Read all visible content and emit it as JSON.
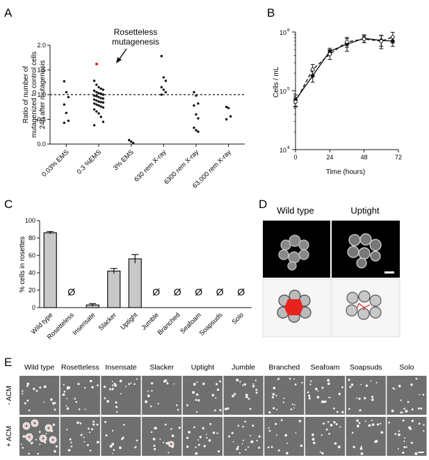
{
  "panels": {
    "A": "A",
    "B": "B",
    "C": "C",
    "D": "D",
    "E": "E"
  },
  "colors": {
    "red": "#e8231e",
    "bar": "#c8c8c8",
    "axis": "#111111"
  },
  "panelA": {
    "annotation": [
      "Rosetteless",
      "mutagenesis"
    ],
    "ylabel": [
      "Ratio of number of",
      "mutagenized to control cells",
      "24h after mutagenesis"
    ],
    "yticks": [
      "0.0",
      "0.5",
      "1.0",
      "1.5",
      "2.0"
    ]
  },
  "panelB": {
    "ylabel": "Cells / mL",
    "xlabel": "Time (hours)",
    "xticks": [
      "0",
      "24",
      "48",
      "72"
    ],
    "yticks": [
      "10",
      "10",
      "10"
    ],
    "yexp": [
      "4",
      "5",
      "6"
    ]
  },
  "panelC": {
    "ylabel": "% cells in rosettes",
    "yticks": [
      "0",
      "20",
      "40",
      "60",
      "80",
      "100"
    ],
    "null_symbol": "Ø"
  },
  "panelD": {
    "titles": [
      "Wild type",
      "Uptight"
    ]
  },
  "panelE": {
    "strains": [
      "Wild type",
      "Rosetteless",
      "Insensate",
      "Slacker",
      "Uptight",
      "Jumble",
      "Branched",
      "Seafoam",
      "Soapsuds",
      "Solo"
    ],
    "rows": [
      "- ACM",
      "+ ACM"
    ]
  },
  "chart_data": [
    {
      "type": "scatter",
      "panel": "A",
      "categories": [
        "0.03% EMS",
        "0.3 %EMS",
        "3% EMS",
        "630 rem X-ray",
        "6300 rem X-ray",
        "63,000 rem X-ray"
      ],
      "ylim": [
        0,
        2.0
      ],
      "reference_line": 1.0,
      "highlight": {
        "category": "0.3 %EMS",
        "y": 1.62,
        "color": "#e8231e"
      },
      "points": [
        [
          1.27,
          1.05,
          0.95,
          0.8,
          0.63,
          0.47,
          0.43
        ],
        [
          1.28,
          1.2,
          1.15,
          1.12,
          1.1,
          1.08,
          1.05,
          1.03,
          1.02,
          1.0,
          0.98,
          0.97,
          0.95,
          0.93,
          0.92,
          0.9,
          0.88,
          0.86,
          0.85,
          0.84,
          0.82,
          0.8,
          0.78,
          0.76,
          0.74,
          0.7,
          0.66,
          0.62,
          0.55,
          0.45,
          0.38
        ],
        [
          0.08,
          0.05,
          0.02
        ],
        [
          1.78,
          1.35,
          1.28,
          1.15,
          1.1,
          1.05,
          1.0
        ],
        [
          1.05,
          0.98,
          0.82,
          0.78,
          0.6,
          0.52,
          0.33,
          0.28,
          0.25
        ],
        [
          0.75,
          0.73,
          0.56,
          0.5
        ]
      ]
    },
    {
      "type": "line",
      "panel": "B",
      "xlabel": "Time (hours)",
      "ylabel": "Cells / mL",
      "xlim": [
        0,
        72
      ],
      "ylim": [
        10000,
        1000000
      ],
      "yscale": "log",
      "series": [
        {
          "x": [
            0,
            12,
            24,
            36,
            48,
            60,
            68
          ],
          "y": [
            70000,
            180000,
            470000,
            620000,
            780000,
            720000,
            700000
          ],
          "err": [
            15000,
            40000,
            60000,
            150000,
            120000,
            150000,
            130000
          ]
        },
        {
          "x": [
            0,
            12,
            24,
            36,
            48,
            60,
            68
          ],
          "y": [
            65000,
            230000,
            420000,
            680000,
            760000,
            700000,
            820000
          ],
          "err": [
            12000,
            50000,
            80000,
            130000,
            100000,
            180000,
            170000
          ]
        }
      ]
    },
    {
      "type": "bar",
      "panel": "C",
      "categories": [
        "Wild type",
        "Rosetteless",
        "Insensate",
        "Slacker",
        "Uptight",
        "Jumble",
        "Branched",
        "Seafoam",
        "Soapsuds",
        "Solo"
      ],
      "values": [
        86,
        null,
        3,
        42,
        56,
        null,
        null,
        null,
        null,
        null
      ],
      "errors": [
        1.5,
        null,
        1.5,
        3,
        5,
        null,
        null,
        null,
        null,
        null
      ],
      "ylabel": "% cells in rosettes",
      "ylim": [
        0,
        100
      ]
    }
  ]
}
